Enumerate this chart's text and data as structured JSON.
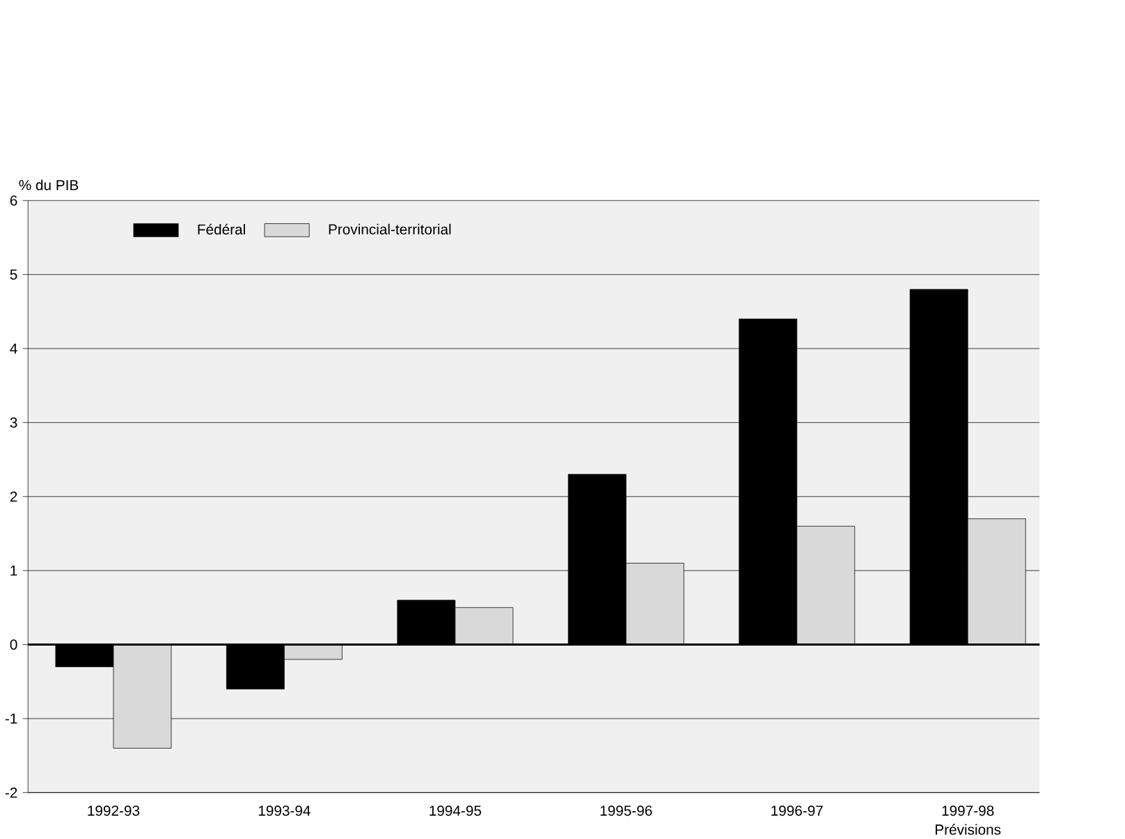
{
  "chart_data": {
    "type": "bar",
    "ylabel": "% du PIB",
    "categories": [
      "1992-93",
      "1993-94",
      "1994-95",
      "1995-96",
      "1996-97",
      "1997-98"
    ],
    "series": [
      {
        "name": "Fédéral",
        "color": "#000000",
        "values": [
          -0.3,
          -0.6,
          0.6,
          2.3,
          4.4,
          4.8
        ]
      },
      {
        "name": "Provincial-territorial",
        "color": "#d9d9d9",
        "values": [
          -1.4,
          -0.2,
          0.5,
          1.1,
          1.6,
          1.7
        ]
      }
    ],
    "ylim": [
      -2,
      6
    ],
    "yticks": [
      -2,
      -1,
      0,
      1,
      2,
      3,
      4,
      5,
      6
    ],
    "grid": "y",
    "legend": "top left",
    "annotations": [
      "Prévisions"
    ]
  }
}
